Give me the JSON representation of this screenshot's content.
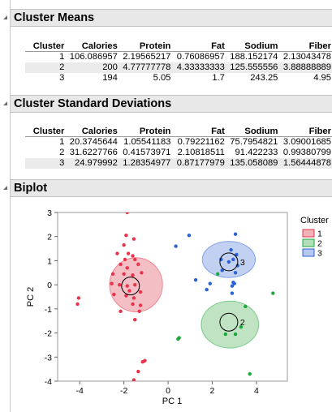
{
  "cluster_means": {
    "title": "Cluster Means",
    "columns": [
      "Cluster",
      "Calories",
      "Protein",
      "Fat",
      "Sodium",
      "Fiber"
    ],
    "rows": [
      [
        "1",
        "106.086957",
        "2.19565217",
        "0.76086957",
        "188.152174",
        "2.13043478"
      ],
      [
        "2",
        "200",
        "4.77777778",
        "4.33333333",
        "125.555556",
        "3.88888889"
      ],
      [
        "3",
        "194",
        "5.05",
        "1.7",
        "243.25",
        "4.95"
      ]
    ]
  },
  "cluster_sd": {
    "title": "Cluster Standard Deviations",
    "columns": [
      "Cluster",
      "Calories",
      "Protein",
      "Fat",
      "Sodium",
      "Fiber"
    ],
    "rows": [
      [
        "1",
        "20.3745644",
        "1.05541183",
        "0.79221162",
        "75.7954821",
        "3.09001685"
      ],
      [
        "2",
        "31.6227766",
        "0.41573971",
        "2.10818511",
        "91.422233",
        "0.99380799"
      ],
      [
        "3",
        "24.979992",
        "1.28354977",
        "0.87177979",
        "135.058089",
        "1.56444878"
      ]
    ]
  },
  "biplot": {
    "title": "Biplot",
    "legend_title": "Cluster",
    "legend_position": "right",
    "colors": {
      "1": "#e8334a",
      "2": "#1aaa3a",
      "3": "#2a62d8"
    },
    "fill_colors": {
      "1": "#f1b3ba",
      "2": "#b4deb9",
      "3": "#b7c8f0"
    }
  },
  "chart_data": {
    "type": "scatter",
    "title": "",
    "xlabel": "PC 1",
    "ylabel": "PC 2",
    "xlim": [
      -5,
      5.4
    ],
    "ylim": [
      -4,
      3
    ],
    "x_ticks": [
      "-4",
      "-2",
      "0",
      "2",
      "4"
    ],
    "y_ticks": [
      "3",
      "2",
      "1",
      "0",
      "-1",
      "-2",
      "-3",
      "-4"
    ],
    "grid": false,
    "series": [
      {
        "name": "1",
        "points": [
          [
            -1.85,
            3.0
          ],
          [
            -1.9,
            2.05
          ],
          [
            -1.55,
            1.9
          ],
          [
            -2.0,
            1.65
          ],
          [
            -1.8,
            1.3
          ],
          [
            -1.6,
            1.2
          ],
          [
            -2.3,
            1.3
          ],
          [
            -1.95,
            1.05
          ],
          [
            -1.5,
            1.05
          ],
          [
            -1.35,
            0.85
          ],
          [
            -2.15,
            0.85
          ],
          [
            -1.85,
            0.7
          ],
          [
            -2.5,
            0.45
          ],
          [
            -2.0,
            0.45
          ],
          [
            -1.6,
            0.4
          ],
          [
            -1.2,
            0.5
          ],
          [
            -2.55,
            0.05
          ],
          [
            -2.2,
            0.0
          ],
          [
            -1.85,
            -0.05
          ],
          [
            -1.5,
            0.0
          ],
          [
            -1.75,
            -0.25
          ],
          [
            -1.25,
            -0.3
          ],
          [
            -1.9,
            -0.45
          ],
          [
            -1.55,
            -0.55
          ],
          [
            -2.45,
            -0.4
          ],
          [
            -1.6,
            -0.8
          ],
          [
            -1.25,
            -0.85
          ],
          [
            -1.3,
            -1.1
          ],
          [
            -2.15,
            -1.1
          ],
          [
            -1.5,
            -1.45
          ],
          [
            -4.05,
            -0.55
          ],
          [
            -4.1,
            -0.8
          ],
          [
            -1.05,
            -3.15
          ],
          [
            -1.15,
            -3.2
          ],
          [
            -1.35,
            -3.6
          ],
          [
            -1.55,
            -3.95
          ]
        ]
      },
      {
        "name": "2",
        "points": [
          [
            2.25,
            0.45
          ],
          [
            4.75,
            -0.35
          ],
          [
            3.5,
            -0.9
          ],
          [
            3.3,
            -1.75
          ],
          [
            2.6,
            -2.05
          ],
          [
            3.05,
            -2.05
          ],
          [
            0.45,
            -2.25
          ],
          [
            0.5,
            -2.2
          ],
          [
            3.7,
            -3.7
          ]
        ]
      },
      {
        "name": "3",
        "points": [
          [
            0.95,
            2.05
          ],
          [
            0.35,
            1.6
          ],
          [
            3.05,
            2.1
          ],
          [
            2.4,
            1.05
          ],
          [
            2.85,
            1.45
          ],
          [
            3.1,
            1.25
          ],
          [
            2.95,
            1.05
          ],
          [
            2.75,
            0.95
          ],
          [
            3.15,
            0.8
          ],
          [
            2.45,
            0.6
          ],
          [
            3.05,
            0.5
          ],
          [
            2.95,
            0.1
          ],
          [
            2.9,
            -0.05
          ],
          [
            3.0,
            0.05
          ],
          [
            1.25,
            0.2
          ],
          [
            1.9,
            0.05
          ],
          [
            1.75,
            -0.2
          ],
          [
            2.9,
            -0.35
          ]
        ]
      }
    ],
    "cluster_centers": [
      {
        "name": "1",
        "x": -1.7,
        "y": -0.05,
        "label": ""
      },
      {
        "name": "2",
        "x": 2.75,
        "y": -1.55,
        "label": "2"
      },
      {
        "name": "3",
        "x": 2.75,
        "y": 0.95,
        "label": "3"
      }
    ],
    "ellipses": [
      {
        "name": "1",
        "cx": -1.45,
        "cy": 0.0,
        "rx": 2.4,
        "ry": 2.25
      },
      {
        "name": "2",
        "cx": 2.8,
        "cy": -1.65,
        "rx": 2.6,
        "ry": 1.95
      },
      {
        "name": "3",
        "cx": 2.75,
        "cy": 1.05,
        "rx": 2.4,
        "ry": 1.5
      }
    ]
  }
}
